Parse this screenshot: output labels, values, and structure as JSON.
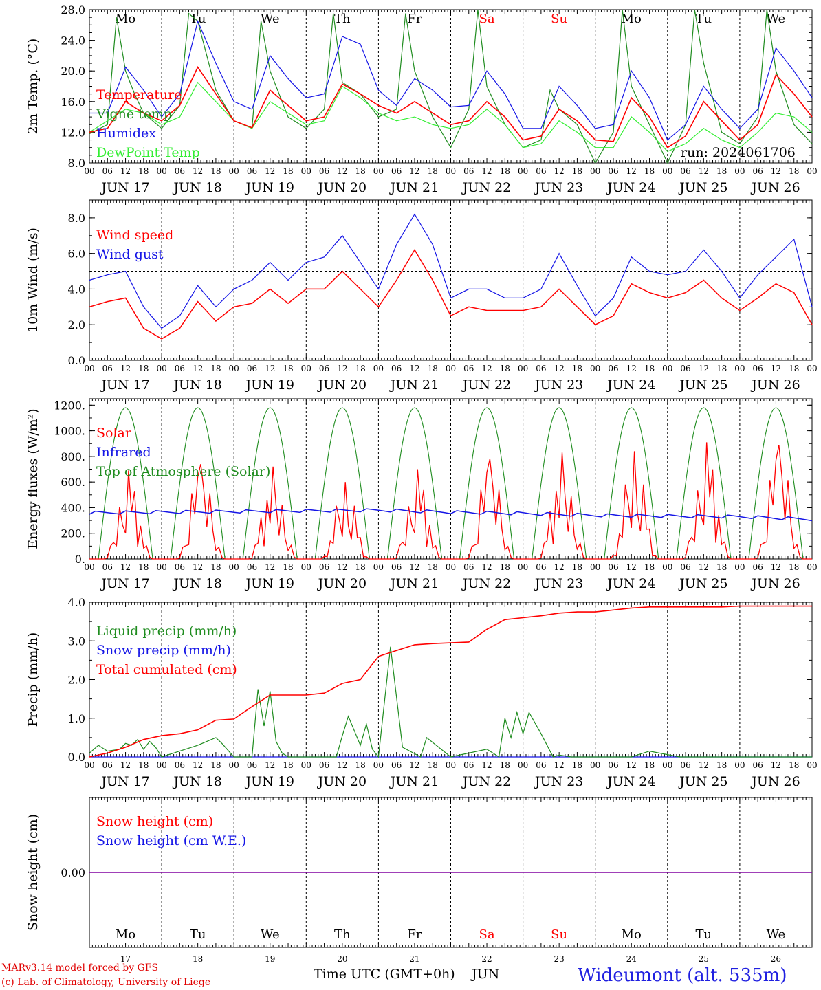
{
  "colors": {
    "red": "#ff0000",
    "darkgreen": "#1f8c1f",
    "blue": "#1515e6",
    "lightgreen": "#33ee33",
    "purple": "#8000a0",
    "footer_red": "#e00000",
    "station_blue": "#2020e0"
  },
  "axis": {
    "days": [
      "JUN 17",
      "JUN 18",
      "JUN 19",
      "JUN 20",
      "JUN 21",
      "JUN 22",
      "JUN 23",
      "JUN 24",
      "JUN 25",
      "JUN 26"
    ],
    "hour_labels": [
      "00",
      "06",
      "12",
      "18"
    ],
    "end_label": "00",
    "weekdays": [
      "Mo",
      "Tu",
      "We",
      "Th",
      "Fr",
      "Sa",
      "Su",
      "Mo",
      "Tu",
      "We"
    ],
    "weekend_index": [
      5,
      6
    ],
    "day_numbers": [
      "17",
      "18",
      "19",
      "20",
      "21",
      "22",
      "23",
      "24",
      "25",
      "26"
    ]
  },
  "panels": {
    "temp": {
      "ylabel": "2m Temp. (°C)",
      "ticks": [
        "28.0",
        "24.0",
        "20.0",
        "16.0",
        "12.0",
        "8.0"
      ],
      "run": "run: 2024061706",
      "legend": [
        "Temperature",
        "Vigne temp",
        "Humidex",
        "DewPoint Temp"
      ]
    },
    "wind": {
      "ylabel": "10m Wind (m/s)",
      "ticks": [
        "8.0",
        "6.0",
        "4.0",
        "2.0",
        "0.0"
      ],
      "legend": [
        "Wind speed",
        "Wind gust"
      ]
    },
    "energy": {
      "ylabel": "Energy fluxes (W/m²)",
      "ticks": [
        "1200.",
        "1000.",
        "800.",
        "600.",
        "400.",
        "200.",
        "0."
      ],
      "legend": [
        "Solar",
        "Infrared",
        "Top of Atmosphere (Solar)"
      ]
    },
    "precip": {
      "ylabel": "Precip (mm/h)",
      "ticks": [
        "4.0",
        "3.0",
        "2.0",
        "1.0",
        "0.0"
      ],
      "legend": [
        "Liquid precip (mm/h)",
        "Snow precip (mm/h)",
        "Total cumulated (cm)"
      ]
    },
    "snow": {
      "ylabel": "Snow height (cm)",
      "ticks": [
        "0.00"
      ],
      "legend": [
        "Snow height (cm)",
        "Snow height (cm W.E.)"
      ]
    }
  },
  "footer": {
    "model": "MARv3.14 model forced by GFS",
    "lab": "(c) Lab. of Climatology, University of Liege",
    "xlabel": "Time UTC (GMT+0h)",
    "month": "JUN",
    "station": "Wideumont (alt. 535m)"
  },
  "chart_data": [
    {
      "type": "line",
      "ylabel": "2m Temp. (°C)",
      "ylim": [
        8,
        28
      ],
      "x_unit": "hours from 2024-06-17 00 UTC",
      "series": [
        {
          "name": "Temperature",
          "color": "#ff0000",
          "x": [
            0,
            6,
            12,
            18,
            24,
            30,
            36,
            42,
            48,
            54,
            60,
            66,
            72,
            78,
            84,
            90,
            96,
            102,
            108,
            114,
            120,
            126,
            132,
            138,
            144,
            150,
            156,
            162,
            168,
            174,
            180,
            186,
            192,
            198,
            204,
            210,
            216,
            222,
            228,
            234,
            240
          ],
          "y": [
            12.0,
            12.5,
            16.0,
            14.5,
            13.5,
            15.5,
            20.5,
            17.0,
            13.5,
            12.6,
            17.5,
            15.5,
            13.5,
            14.0,
            18.3,
            17.0,
            15.5,
            14.5,
            16.0,
            14.5,
            13.0,
            13.5,
            16.0,
            14.0,
            11.0,
            11.5,
            15.0,
            13.5,
            11.0,
            10.8,
            16.5,
            14.0,
            10.0,
            11.5,
            16.0,
            13.5,
            11.0,
            13.0,
            19.5,
            17.0,
            14.0
          ]
        },
        {
          "name": "Vigne temp",
          "color": "#1f8c1f",
          "x": [
            0,
            6,
            9,
            12,
            15,
            18,
            24,
            30,
            33,
            36,
            42,
            48,
            54,
            57,
            60,
            66,
            72,
            78,
            81,
            84,
            90,
            96,
            102,
            105,
            108,
            114,
            120,
            126,
            129,
            132,
            138,
            144,
            150,
            153,
            156,
            162,
            168,
            174,
            177,
            180,
            186,
            192,
            198,
            201,
            204,
            210,
            216,
            222,
            225,
            228,
            234,
            240
          ],
          "y": [
            11.8,
            13.0,
            27.0,
            20.0,
            17.0,
            14.5,
            12.5,
            15.5,
            27.5,
            26.5,
            17.5,
            13.5,
            12.5,
            26.5,
            20.0,
            14.0,
            12.5,
            15.0,
            27.5,
            18.5,
            17.0,
            14.0,
            15.0,
            27.5,
            20.0,
            14.0,
            10.0,
            15.0,
            28.0,
            18.0,
            13.0,
            10.0,
            11.0,
            17.5,
            15.0,
            13.0,
            8.0,
            12.0,
            28.5,
            18.0,
            13.0,
            8.0,
            13.0,
            28.0,
            21.0,
            12.0,
            10.5,
            14.0,
            28.0,
            20.0,
            13.0,
            10.5
          ]
        },
        {
          "name": "Humidex",
          "color": "#1515e6",
          "x": [
            0,
            6,
            12,
            18,
            24,
            30,
            36,
            42,
            48,
            54,
            60,
            66,
            72,
            78,
            84,
            90,
            96,
            102,
            108,
            114,
            120,
            126,
            132,
            138,
            144,
            150,
            156,
            162,
            168,
            174,
            180,
            186,
            192,
            198,
            204,
            210,
            216,
            222,
            228,
            234,
            240
          ],
          "y": [
            14.5,
            14.5,
            20.5,
            17.5,
            14.0,
            17.0,
            26.5,
            21.0,
            16.0,
            15.0,
            22.0,
            19.0,
            16.5,
            17.0,
            24.5,
            23.5,
            17.5,
            15.5,
            19.0,
            17.5,
            15.3,
            15.5,
            20.0,
            17.0,
            12.5,
            12.5,
            18.0,
            15.5,
            12.5,
            13.0,
            20.0,
            16.5,
            11.0,
            13.0,
            18.0,
            15.0,
            12.5,
            15.0,
            23.0,
            20.0,
            16.5
          ]
        },
        {
          "name": "DewPoint Temp",
          "color": "#33ee33",
          "x": [
            0,
            6,
            12,
            18,
            24,
            30,
            36,
            42,
            48,
            54,
            60,
            66,
            72,
            78,
            84,
            90,
            96,
            102,
            108,
            114,
            120,
            126,
            132,
            138,
            144,
            150,
            156,
            162,
            168,
            174,
            180,
            186,
            192,
            198,
            204,
            210,
            216,
            222,
            228,
            234,
            240
          ],
          "y": [
            12.0,
            13.5,
            15.0,
            14.5,
            13.0,
            14.0,
            18.5,
            16.0,
            13.5,
            12.5,
            16.0,
            14.5,
            13.0,
            13.5,
            18.0,
            16.5,
            14.5,
            13.5,
            14.0,
            13.0,
            12.5,
            13.0,
            15.0,
            13.0,
            10.0,
            10.5,
            13.5,
            12.0,
            10.0,
            10.0,
            14.0,
            12.0,
            9.5,
            10.5,
            12.5,
            11.0,
            10.0,
            12.0,
            14.5,
            14.0,
            12.0
          ]
        }
      ]
    },
    {
      "type": "line",
      "ylabel": "10m Wind (m/s)",
      "ylim": [
        0,
        9
      ],
      "reference_line": 5.0,
      "x_unit": "hours from 2024-06-17 00 UTC",
      "series": [
        {
          "name": "Wind speed",
          "color": "#ff0000",
          "x": [
            0,
            6,
            12,
            18,
            24,
            30,
            36,
            42,
            48,
            54,
            60,
            66,
            72,
            78,
            84,
            90,
            96,
            102,
            108,
            114,
            120,
            126,
            132,
            138,
            144,
            150,
            156,
            162,
            168,
            174,
            180,
            186,
            192,
            198,
            204,
            210,
            216,
            222,
            228,
            234,
            240
          ],
          "y": [
            3.0,
            3.3,
            3.5,
            1.8,
            1.2,
            1.8,
            3.3,
            2.2,
            3.0,
            3.2,
            4.0,
            3.2,
            4.0,
            4.0,
            5.0,
            4.0,
            3.0,
            4.5,
            6.2,
            4.5,
            2.5,
            3.0,
            2.8,
            2.8,
            2.8,
            3.0,
            4.0,
            3.0,
            2.0,
            2.5,
            4.3,
            3.8,
            3.5,
            3.8,
            4.5,
            3.5,
            2.8,
            3.5,
            4.3,
            3.8,
            2.0
          ]
        },
        {
          "name": "Wind gust",
          "color": "#1515e6",
          "x": [
            0,
            6,
            12,
            18,
            24,
            30,
            36,
            42,
            48,
            54,
            60,
            66,
            72,
            78,
            84,
            90,
            96,
            102,
            108,
            114,
            120,
            126,
            132,
            138,
            144,
            150,
            156,
            162,
            168,
            174,
            180,
            186,
            192,
            198,
            204,
            210,
            216,
            222,
            228,
            234,
            240
          ],
          "y": [
            4.5,
            4.8,
            5.0,
            3.0,
            1.8,
            2.5,
            4.2,
            3.0,
            4.0,
            4.5,
            5.5,
            4.5,
            5.5,
            5.8,
            7.0,
            5.5,
            4.0,
            6.5,
            8.2,
            6.5,
            3.5,
            4.0,
            4.0,
            3.5,
            3.5,
            4.0,
            6.0,
            4.2,
            2.5,
            3.5,
            5.8,
            5.0,
            4.8,
            5.0,
            6.2,
            5.0,
            3.5,
            4.8,
            5.8,
            6.8,
            3.0
          ]
        }
      ]
    },
    {
      "type": "line",
      "ylabel": "Energy fluxes (W/m²)",
      "ylim": [
        0,
        1250
      ],
      "x_unit": "hours from 2024-06-17 00 UTC",
      "series": [
        {
          "name": "Solar",
          "color": "#ff0000",
          "peak_hour": 13,
          "daily_peak": [
            690,
            740,
            720,
            600,
            700,
            780,
            830,
            840,
            910,
            890
          ]
        },
        {
          "name": "Infrared",
          "color": "#1515e6",
          "x": [
            0,
            24,
            48,
            72,
            96,
            120,
            144,
            168,
            192,
            216,
            240
          ],
          "y": [
            360,
            365,
            370,
            375,
            380,
            365,
            355,
            340,
            335,
            330,
            310
          ]
        },
        {
          "name": "Top of Atmosphere (Solar)",
          "color": "#1f8c1f",
          "peak_hour": 12,
          "sunrise_hour": 3,
          "sunset_hour": 21,
          "daily_peak": [
            1180,
            1180,
            1180,
            1180,
            1180,
            1180,
            1180,
            1180,
            1180,
            1180
          ]
        }
      ]
    },
    {
      "type": "line",
      "ylabel": "Precip (mm/h)",
      "ylim": [
        0,
        4
      ],
      "x_unit": "hours from 2024-06-17 00 UTC",
      "series": [
        {
          "name": "Liquid precip (mm/h)",
          "color": "#1f8c1f",
          "x": [
            0,
            3,
            6,
            10,
            12,
            14,
            16,
            18,
            20,
            22,
            24,
            36,
            42,
            44,
            48,
            52,
            54,
            56,
            58,
            60,
            62,
            64,
            66,
            78,
            82,
            84,
            86,
            90,
            92,
            94,
            96,
            100,
            104,
            110,
            112,
            120,
            132,
            136,
            138,
            140,
            142,
            144,
            146,
            150,
            154,
            156,
            160,
            168,
            180,
            182,
            186,
            196,
            216,
            240
          ],
          "y": [
            0.1,
            0.3,
            0.15,
            0.2,
            0.35,
            0.3,
            0.45,
            0.2,
            0.4,
            0.25,
            0.0,
            0.3,
            0.5,
            0.35,
            0.0,
            0.0,
            0.0,
            1.75,
            0.8,
            1.7,
            0.4,
            0.1,
            0.0,
            0.0,
            0.0,
            0.55,
            1.05,
            0.3,
            0.85,
            0.2,
            0.0,
            2.85,
            0.25,
            0.0,
            0.5,
            0.0,
            0.2,
            0.0,
            1.0,
            0.5,
            1.15,
            0.6,
            1.15,
            0.6,
            0.0,
            0.05,
            0.0,
            0.0,
            0.0,
            0.05,
            0.15,
            0.0,
            0.0,
            0.0
          ]
        },
        {
          "name": "Snow precip (mm/h)",
          "color": "#1515e6",
          "x": [
            0,
            240
          ],
          "y": [
            0.0,
            0.0
          ]
        },
        {
          "name": "Total cumulated (cm)",
          "color": "#ff0000",
          "x": [
            0,
            6,
            12,
            18,
            24,
            30,
            36,
            42,
            48,
            54,
            60,
            66,
            72,
            78,
            84,
            90,
            96,
            102,
            108,
            114,
            120,
            126,
            132,
            138,
            144,
            150,
            156,
            162,
            168,
            174,
            180,
            186,
            192,
            198,
            204,
            210,
            216,
            222,
            228,
            234,
            240
          ],
          "y": [
            0.0,
            0.1,
            0.25,
            0.45,
            0.55,
            0.6,
            0.7,
            0.95,
            0.98,
            1.3,
            1.6,
            1.6,
            1.6,
            1.65,
            1.9,
            2.0,
            2.6,
            2.75,
            2.9,
            2.93,
            2.95,
            2.97,
            3.3,
            3.55,
            3.6,
            3.65,
            3.72,
            3.75,
            3.75,
            3.8,
            3.85,
            3.88,
            3.88,
            3.88,
            3.88,
            3.88,
            3.9,
            3.9,
            3.9,
            3.9,
            3.9
          ]
        }
      ]
    },
    {
      "type": "line",
      "ylabel": "Snow height (cm)",
      "ylim": [
        -1,
        1
      ],
      "x_unit": "hours from 2024-06-17 00 UTC",
      "series": [
        {
          "name": "Snow height (cm)",
          "color": "#ff0000",
          "x": [
            0,
            240
          ],
          "y": [
            0.0,
            0.0
          ]
        },
        {
          "name": "Snow height (cm W.E.)",
          "color": "#1515e6",
          "x": [
            0,
            240
          ],
          "y": [
            0.0,
            0.0
          ]
        }
      ]
    }
  ]
}
